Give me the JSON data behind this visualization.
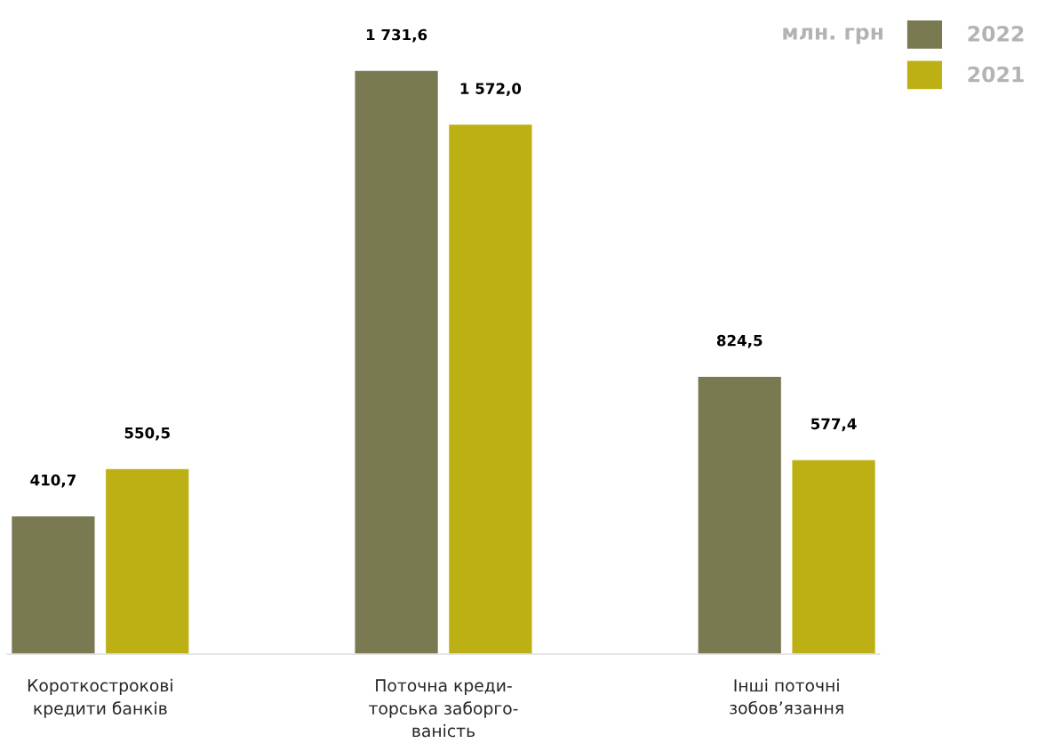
{
  "chart_data": {
    "type": "bar",
    "categories": [
      "Короткострокові\nкредити банків",
      "Поточна креди-\nторська заборго-\nваність",
      "Інші поточні\nзобов’язання"
    ],
    "series": [
      {
        "name": "2022",
        "color": "#7a7a52",
        "values": [
          410.7,
          1731.6,
          824.5
        ],
        "value_labels": [
          "410,7",
          "1 731,6",
          "824,5"
        ]
      },
      {
        "name": "2021",
        "color": "#bdb015",
        "values": [
          550.5,
          1572.0,
          577.4
        ],
        "value_labels": [
          "550,5",
          "1 572,0",
          "577,4"
        ]
      }
    ],
    "annotations": [
      "млн. грн"
    ],
    "legend": "top right",
    "grid": false
  }
}
